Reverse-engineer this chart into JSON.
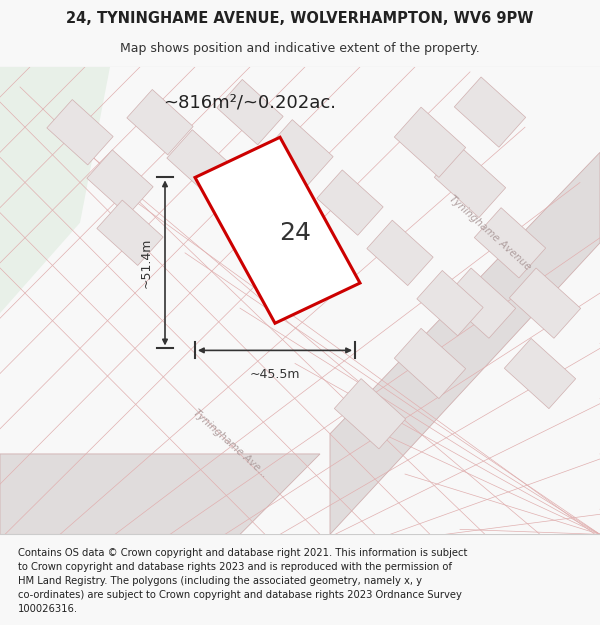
{
  "title_line1": "24, TYNINGHAME AVENUE, WOLVERHAMPTON, WV6 9PW",
  "title_line2": "Map shows position and indicative extent of the property.",
  "area_label": "~816m²/~0.202ac.",
  "number_label": "24",
  "width_label": "~45.5m",
  "height_label": "~51.4m",
  "street_label_1": "Tyninghame Avenue",
  "street_label_2": "Tyninghame Ave...",
  "footer_text": "Contains OS data © Crown copyright and database right 2021. This information is subject\nto Crown copyright and database rights 2023 and is reproduced with the permission of\nHM Land Registry. The polygons (including the associated geometry, namely x, y\nco-ordinates) are subject to Crown copyright and database rights 2023 Ordnance Survey\n100026316.",
  "bg_map_color": "#f5f0f0",
  "bg_green_color": "#e8f0e8",
  "plot_fill_color": "#ffffff",
  "plot_border_color": "#cc0000",
  "road_line_color": "#d0b0b0",
  "parcel_line_color": "#e0b0b0",
  "dimension_color": "#333333",
  "street_text_color": "#b0a0a0",
  "header_bg": "#f8f8f8",
  "footer_bg": "#f8f8f8"
}
